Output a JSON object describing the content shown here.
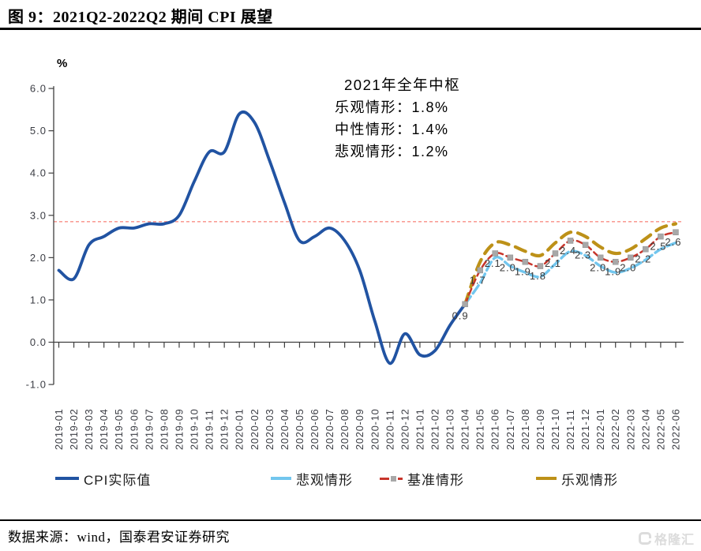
{
  "figure": {
    "title": "图 9：2021Q2-2022Q2 期间 CPI 展望",
    "source": "数据来源：wind，国泰君安证券研究",
    "watermark": {
      "logo_icon": "gelonghui-logo",
      "text": "格隆汇"
    }
  },
  "annotation": {
    "title": "2021年全年中枢",
    "optimistic": "乐观情形：1.8%",
    "neutral": "中性情形：1.4%",
    "pessimistic": "悲观情形：1.2%"
  },
  "chart_data": {
    "type": "line",
    "title": "2021Q2-2022Q2 期间 CPI 展望",
    "ylabel": "%",
    "xlabel": "",
    "ylim": [
      -1.0,
      6.0
    ],
    "grid": false,
    "legend_position": "bottom",
    "y_tick_values": [
      6,
      5,
      4,
      3,
      2,
      1,
      0,
      -1
    ],
    "y_tick_labels": [
      "6.0",
      "5.0",
      "4.0",
      "3.0",
      "2.0",
      "1.0",
      "0.0",
      "-1.0"
    ],
    "reference_line": {
      "value": 2.85,
      "color": "#f98f85"
    },
    "x": [
      "2019-01",
      "2019-02",
      "2019-03",
      "2019-04",
      "2019-05",
      "2019-06",
      "2019-07",
      "2019-08",
      "2019-09",
      "2019-10",
      "2019-11",
      "2019-12",
      "2020-01",
      "2020-02",
      "2020-03",
      "2020-04",
      "2020-05",
      "2020-06",
      "2020-07",
      "2020-08",
      "2020-09",
      "2020-10",
      "2020-11",
      "2020-12",
      "2021-01",
      "2021-02",
      "2021-03",
      "2021-04",
      "2021-05",
      "2021-06",
      "2021-07",
      "2021-08",
      "2021-09",
      "2021-10",
      "2021-11",
      "2021-12",
      "2022-01",
      "2022-02",
      "2022-03",
      "2022-04",
      "2022-05",
      "2022-06"
    ],
    "series": [
      {
        "name": "CPI实际值",
        "color": "#2153a2",
        "style": "solid",
        "width": 3.8,
        "dash": "",
        "x_start": 0,
        "values": [
          1.7,
          1.5,
          2.3,
          2.5,
          2.7,
          2.7,
          2.8,
          2.8,
          3.0,
          3.8,
          4.5,
          4.5,
          5.4,
          5.2,
          4.3,
          3.3,
          2.4,
          2.5,
          2.7,
          2.4,
          1.7,
          0.5,
          -0.5,
          0.2,
          -0.3,
          -0.2,
          0.4,
          0.9
        ]
      },
      {
        "name": "悲观情形",
        "color": "#72c6ee",
        "style": "dashed",
        "width": 3.4,
        "dash": "12 5",
        "x_start": 27,
        "values": [
          0.9,
          1.4,
          2.0,
          1.8,
          1.65,
          1.55,
          1.85,
          2.15,
          2.05,
          1.8,
          1.65,
          1.75,
          1.95,
          2.2,
          2.35
        ]
      },
      {
        "name": "基准情形",
        "color": "#c8352b",
        "style": "dashed",
        "width": 2.5,
        "dash": "8 5",
        "x_start": 27,
        "marker": "square",
        "marker_color": "#a8a8a8",
        "values": [
          0.9,
          1.7,
          2.1,
          2.0,
          1.9,
          1.8,
          2.1,
          2.4,
          2.3,
          2.0,
          1.9,
          2.0,
          2.2,
          2.5,
          2.6
        ],
        "labels": [
          "0.9",
          "1.7",
          "2.1",
          "2.0",
          "1.9",
          "1.8",
          "2.1",
          "2.4",
          "2.3",
          "2.0",
          "1.9",
          "2.0",
          "2.2",
          "2.5",
          "2.6"
        ]
      },
      {
        "name": "乐观情形",
        "color": "#bd9118",
        "style": "dashed",
        "width": 4.2,
        "dash": "14 9",
        "x_start": 27,
        "values": [
          0.9,
          1.9,
          2.35,
          2.3,
          2.15,
          2.05,
          2.35,
          2.6,
          2.5,
          2.25,
          2.1,
          2.2,
          2.45,
          2.7,
          2.8
        ]
      }
    ]
  },
  "legend": {
    "items": [
      {
        "label": "CPI实际值"
      },
      {
        "label": "悲观情形"
      },
      {
        "label": "基准情形"
      },
      {
        "label": "乐观情形"
      }
    ]
  }
}
